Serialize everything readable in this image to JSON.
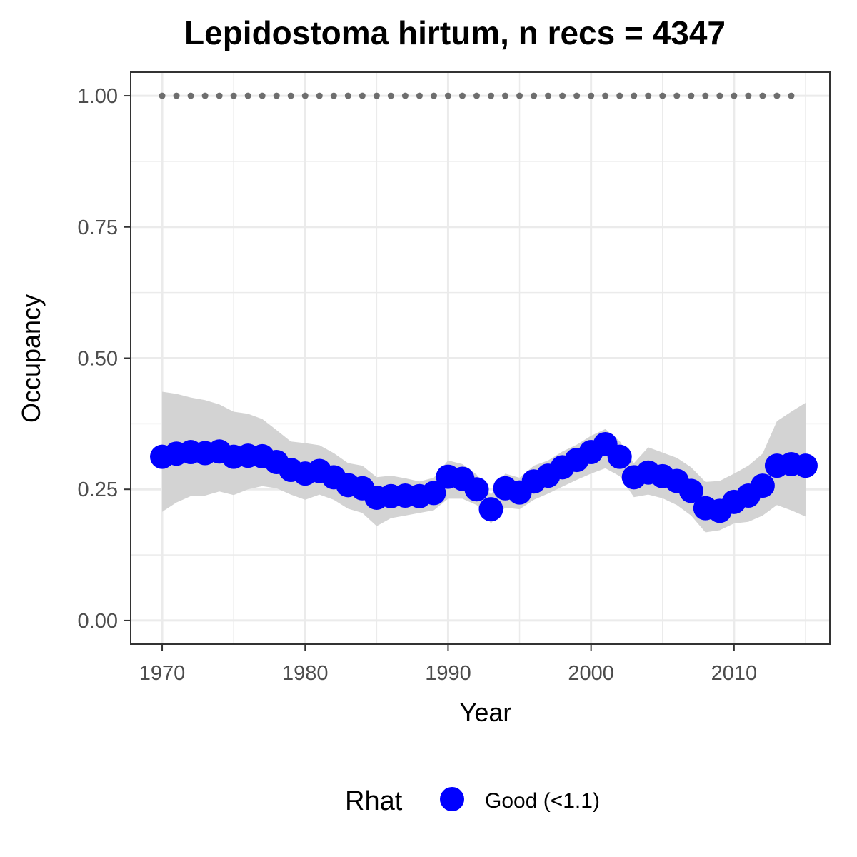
{
  "chart_data": {
    "type": "line",
    "title": "Lepidostoma hirtum, n recs = 4347",
    "xlabel": "Year",
    "ylabel": "Occupancy",
    "xlim": [
      1967.8,
      2016.7
    ],
    "ylim": [
      -0.045,
      1.045
    ],
    "x_ticks": [
      1970,
      1980,
      1990,
      2000,
      2010
    ],
    "y_ticks": [
      0.0,
      0.25,
      0.5,
      0.75,
      1.0
    ],
    "x_tick_labels": [
      "1970",
      "1980",
      "1990",
      "2000",
      "2010"
    ],
    "y_tick_labels": [
      "0.00",
      "0.25",
      "0.50",
      "0.75",
      "1.00"
    ],
    "grid": true,
    "legend": {
      "title": "Rhat",
      "position": "bottom",
      "entries": [
        {
          "label": "Good (<1.1)",
          "color": "#0000ff"
        }
      ]
    },
    "colors": {
      "points": "#0000ff",
      "ribbon": "#d3d3d3",
      "reference": "#6e6e6e",
      "grid": "#ebebeb",
      "border": "#333333"
    },
    "x": [
      1970,
      1971,
      1972,
      1973,
      1974,
      1975,
      1976,
      1977,
      1978,
      1979,
      1980,
      1981,
      1982,
      1983,
      1984,
      1985,
      1986,
      1987,
      1988,
      1989,
      1990,
      1991,
      1992,
      1993,
      1994,
      1995,
      1996,
      1997,
      1998,
      1999,
      2000,
      2001,
      2002,
      2003,
      2004,
      2005,
      2006,
      2007,
      2008,
      2009,
      2010,
      2011,
      2012,
      2013,
      2014,
      2015
    ],
    "series": [
      {
        "name": "Good (<1.1)",
        "values": [
          0.312,
          0.318,
          0.321,
          0.319,
          0.322,
          0.312,
          0.314,
          0.313,
          0.302,
          0.287,
          0.28,
          0.285,
          0.273,
          0.258,
          0.252,
          0.234,
          0.237,
          0.238,
          0.237,
          0.243,
          0.274,
          0.27,
          0.25,
          0.212,
          0.252,
          0.244,
          0.265,
          0.276,
          0.292,
          0.306,
          0.321,
          0.336,
          0.312,
          0.273,
          0.282,
          0.275,
          0.266,
          0.247,
          0.214,
          0.209,
          0.226,
          0.238,
          0.257,
          0.295,
          0.298,
          0.295
        ],
        "lower": [
          0.207,
          0.225,
          0.237,
          0.238,
          0.246,
          0.239,
          0.25,
          0.256,
          0.252,
          0.24,
          0.23,
          0.24,
          0.23,
          0.213,
          0.205,
          0.18,
          0.195,
          0.2,
          0.205,
          0.21,
          0.232,
          0.232,
          0.22,
          0.185,
          0.215,
          0.212,
          0.23,
          0.242,
          0.255,
          0.268,
          0.28,
          0.29,
          0.275,
          0.235,
          0.24,
          0.233,
          0.22,
          0.2,
          0.168,
          0.172,
          0.185,
          0.188,
          0.2,
          0.22,
          0.21,
          0.198
        ],
        "upper": [
          0.436,
          0.432,
          0.425,
          0.42,
          0.412,
          0.398,
          0.394,
          0.384,
          0.363,
          0.341,
          0.338,
          0.334,
          0.319,
          0.3,
          0.295,
          0.273,
          0.276,
          0.271,
          0.265,
          0.272,
          0.305,
          0.298,
          0.278,
          0.24,
          0.28,
          0.272,
          0.295,
          0.305,
          0.322,
          0.335,
          0.352,
          0.365,
          0.342,
          0.3,
          0.33,
          0.32,
          0.31,
          0.292,
          0.264,
          0.266,
          0.28,
          0.295,
          0.318,
          0.38,
          0.398,
          0.415
        ]
      }
    ],
    "reference_line": {
      "y": 1.0,
      "x_range": [
        1970,
        2014
      ]
    }
  }
}
